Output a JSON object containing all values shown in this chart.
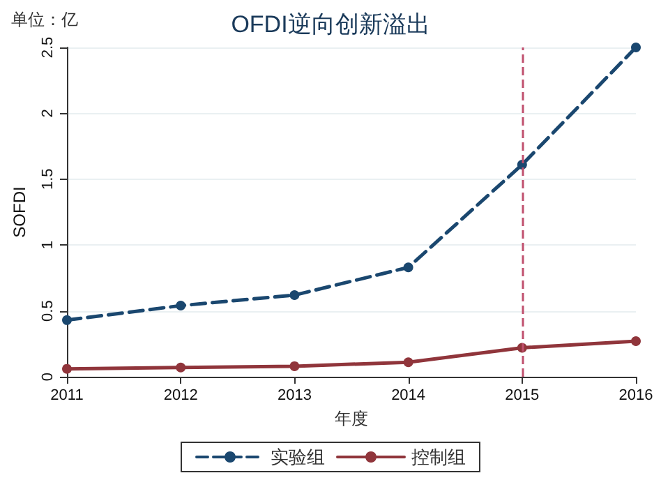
{
  "chart_data": {
    "type": "line",
    "title": "OFDI逆向创新溢出",
    "xlabel": "年度",
    "ylabel": "SOFDI",
    "annotations": [
      "单位：亿"
    ],
    "x": [
      2011,
      2012,
      2013,
      2014,
      2015,
      2016
    ],
    "series": [
      {
        "name": "实验组",
        "color": "#1a476f",
        "values": [
          0.43,
          0.54,
          0.62,
          0.83,
          1.61,
          2.5
        ],
        "line_style": "dashed"
      },
      {
        "name": "控制组",
        "color": "#90353b",
        "values": [
          0.06,
          0.07,
          0.08,
          0.11,
          0.22,
          0.27
        ],
        "line_style": "solid"
      }
    ],
    "xlim": [
      2011,
      2016
    ],
    "xticks": [
      2011,
      2012,
      2013,
      2014,
      2015,
      2016
    ],
    "ylim": [
      0,
      2.5
    ],
    "yticks": [
      0,
      0.5,
      1,
      1.5,
      2,
      2.5
    ],
    "ref_lines": [
      {
        "axis": "x",
        "value": 2015,
        "color": "#c0506e",
        "line_style": "dashed"
      }
    ],
    "grid": "y",
    "legend": "bottom",
    "marker": "circle"
  }
}
